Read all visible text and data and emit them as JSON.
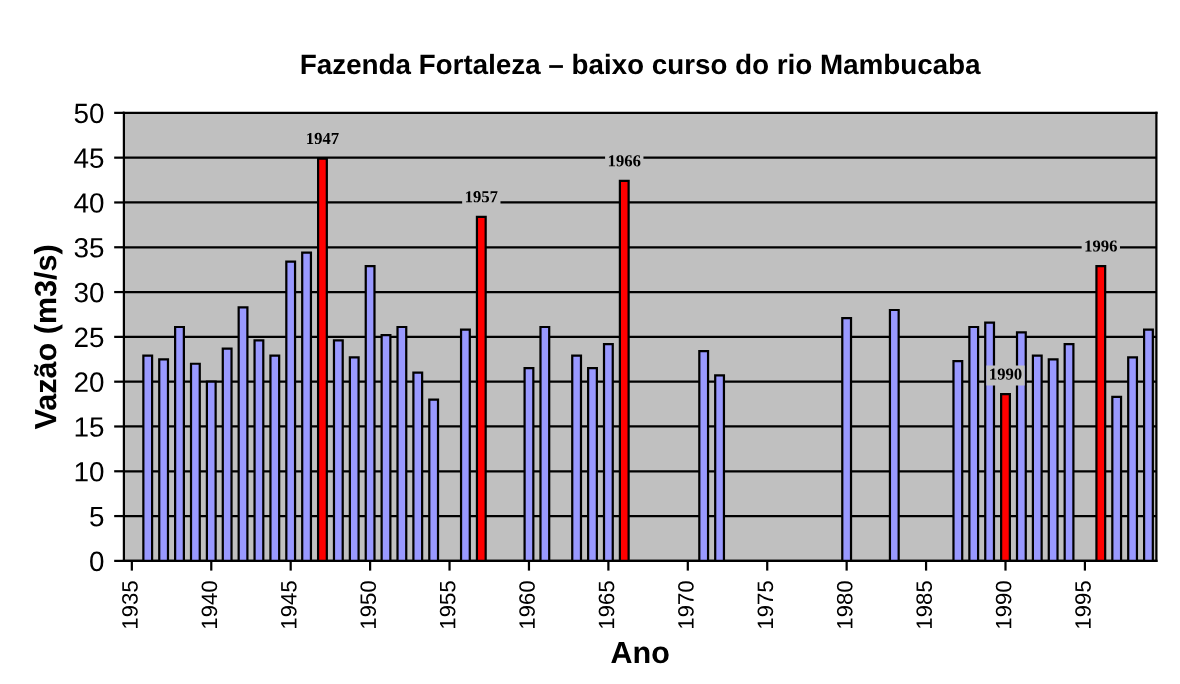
{
  "chart_data": {
    "type": "bar",
    "title": "Fazenda Fortaleza – baixo curso do rio Mambucaba",
    "xlabel": "Ano",
    "ylabel": "Vazão (m3/s)",
    "x": [
      1936,
      1937,
      1938,
      1939,
      1940,
      1941,
      1942,
      1943,
      1944,
      1945,
      1946,
      1947,
      1948,
      1949,
      1950,
      1951,
      1952,
      1953,
      1954,
      1956,
      1957,
      1960,
      1961,
      1963,
      1964,
      1965,
      1966,
      1971,
      1972,
      1980,
      1983,
      1987,
      1988,
      1989,
      1990,
      1991,
      1992,
      1993,
      1994,
      1996,
      1997,
      1998,
      1999
    ],
    "values": [
      22.9,
      22.5,
      26.1,
      22.0,
      20.0,
      23.7,
      28.3,
      24.6,
      22.9,
      33.4,
      34.4,
      44.9,
      24.6,
      22.7,
      32.9,
      25.2,
      26.1,
      21.0,
      18.0,
      25.8,
      38.4,
      21.5,
      26.1,
      22.9,
      21.5,
      24.2,
      42.4,
      23.4,
      20.7,
      27.1,
      28.0,
      22.3,
      26.1,
      26.6,
      18.6,
      25.5,
      22.9,
      22.5,
      24.2,
      32.9,
      18.3,
      22.7,
      25.8
    ],
    "colors": [
      "#9999ff",
      "#9999ff",
      "#9999ff",
      "#9999ff",
      "#9999ff",
      "#9999ff",
      "#9999ff",
      "#9999ff",
      "#9999ff",
      "#9999ff",
      "#9999ff",
      "#ff0000",
      "#9999ff",
      "#9999ff",
      "#9999ff",
      "#9999ff",
      "#9999ff",
      "#9999ff",
      "#9999ff",
      "#9999ff",
      "#ff0000",
      "#9999ff",
      "#9999ff",
      "#9999ff",
      "#9999ff",
      "#9999ff",
      "#ff0000",
      "#9999ff",
      "#9999ff",
      "#9999ff",
      "#9999ff",
      "#9999ff",
      "#9999ff",
      "#9999ff",
      "#ff0000",
      "#9999ff",
      "#9999ff",
      "#9999ff",
      "#9999ff",
      "#ff0000",
      "#9999ff",
      "#9999ff",
      "#9999ff"
    ],
    "xlim": [
      1934.5,
      1999.5
    ],
    "xticks": [
      1935,
      1940,
      1945,
      1950,
      1955,
      1960,
      1965,
      1970,
      1975,
      1980,
      1985,
      1990,
      1995
    ],
    "ylim": [
      0,
      50
    ],
    "yticks": [
      0,
      5,
      10,
      15,
      20,
      25,
      30,
      35,
      40,
      45,
      50
    ],
    "grid": "y",
    "legend": false,
    "annotations": [
      {
        "text": "1947",
        "x": 1947,
        "y": 44.9
      },
      {
        "text": "1957",
        "x": 1957,
        "y": 38.4
      },
      {
        "text": "1966",
        "x": 1966,
        "y": 42.4
      },
      {
        "text": "1990",
        "x": 1990,
        "y": 18.6
      },
      {
        "text": "1996",
        "x": 1996,
        "y": 32.9
      }
    ]
  }
}
